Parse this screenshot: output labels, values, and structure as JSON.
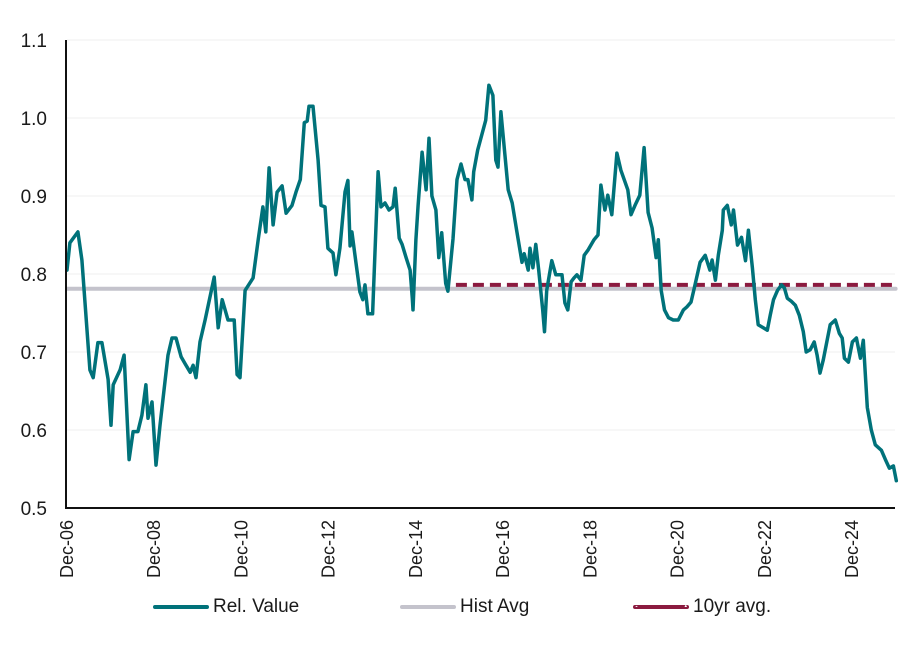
{
  "chart_data": {
    "type": "line",
    "title": "",
    "xlabel": "",
    "ylabel": "",
    "ylim": [
      0.5,
      1.1
    ],
    "yticks": [
      "0.5",
      "0.6",
      "0.7",
      "0.8",
      "0.9",
      "1.0",
      "1.1"
    ],
    "ytick_values": [
      0.5,
      0.6,
      0.7,
      0.8,
      0.9,
      1.0,
      1.1
    ],
    "xtick_labels": [
      "Dec-06",
      "Dec-08",
      "Dec-10",
      "Dec-12",
      "Dec-14",
      "Dec-16",
      "Dec-18",
      "Dec-20",
      "Dec-22",
      "Dec-24"
    ],
    "xtick_months": [
      0,
      24,
      48,
      72,
      96,
      120,
      144,
      168,
      192,
      216
    ],
    "x_unit": "months since Dec-06",
    "xlim": [
      0,
      228
    ],
    "grid": true,
    "legend_position": "bottom",
    "series": [
      {
        "name": "Rel. Value",
        "color": "#00727a",
        "style": "solid",
        "points": [
          [
            0,
            0.805
          ],
          [
            0.8,
            0.84
          ],
          [
            3.0,
            0.854
          ],
          [
            4.1,
            0.818
          ],
          [
            6.3,
            0.677
          ],
          [
            7.2,
            0.667
          ],
          [
            8.5,
            0.712
          ],
          [
            9.6,
            0.712
          ],
          [
            11.3,
            0.665
          ],
          [
            12.1,
            0.606
          ],
          [
            12.7,
            0.658
          ],
          [
            14.6,
            0.677
          ],
          [
            15.7,
            0.696
          ],
          [
            17.1,
            0.562
          ],
          [
            18.2,
            0.598
          ],
          [
            19.5,
            0.598
          ],
          [
            20.6,
            0.619
          ],
          [
            21.7,
            0.658
          ],
          [
            22.3,
            0.615
          ],
          [
            23.4,
            0.636
          ],
          [
            24.5,
            0.555
          ],
          [
            25.6,
            0.606
          ],
          [
            27.8,
            0.696
          ],
          [
            28.9,
            0.718
          ],
          [
            30.0,
            0.718
          ],
          [
            31.4,
            0.694
          ],
          [
            32.5,
            0.685
          ],
          [
            33.9,
            0.674
          ],
          [
            34.7,
            0.683
          ],
          [
            35.5,
            0.667
          ],
          [
            36.6,
            0.713
          ],
          [
            38.0,
            0.741
          ],
          [
            40.5,
            0.796
          ],
          [
            41.6,
            0.731
          ],
          [
            42.7,
            0.767
          ],
          [
            44.3,
            0.741
          ],
          [
            46.0,
            0.741
          ],
          [
            46.8,
            0.671
          ],
          [
            47.6,
            0.667
          ],
          [
            49.0,
            0.779
          ],
          [
            51.2,
            0.795
          ],
          [
            52.6,
            0.844
          ],
          [
            53.9,
            0.886
          ],
          [
            54.7,
            0.854
          ],
          [
            55.6,
            0.936
          ],
          [
            56.7,
            0.863
          ],
          [
            57.8,
            0.905
          ],
          [
            59.2,
            0.913
          ],
          [
            60.3,
            0.878
          ],
          [
            61.9,
            0.888
          ],
          [
            63.0,
            0.905
          ],
          [
            64.2,
            0.921
          ],
          [
            65.3,
            0.994
          ],
          [
            66.1,
            0.996
          ],
          [
            66.6,
            1.015
          ],
          [
            67.7,
            1.015
          ],
          [
            69.1,
            0.946
          ],
          [
            69.9,
            0.888
          ],
          [
            71.0,
            0.886
          ],
          [
            71.8,
            0.833
          ],
          [
            73.2,
            0.827
          ],
          [
            74.0,
            0.799
          ],
          [
            75.1,
            0.833
          ],
          [
            76.5,
            0.905
          ],
          [
            77.3,
            0.92
          ],
          [
            77.9,
            0.836
          ],
          [
            78.4,
            0.854
          ],
          [
            79.5,
            0.815
          ],
          [
            80.6,
            0.777
          ],
          [
            81.4,
            0.767
          ],
          [
            82.0,
            0.786
          ],
          [
            82.8,
            0.749
          ],
          [
            84.1,
            0.749
          ],
          [
            85.6,
            0.931
          ],
          [
            86.4,
            0.886
          ],
          [
            87.5,
            0.891
          ],
          [
            88.6,
            0.882
          ],
          [
            89.7,
            0.886
          ],
          [
            90.3,
            0.91
          ],
          [
            91.4,
            0.846
          ],
          [
            92.2,
            0.838
          ],
          [
            93.3,
            0.821
          ],
          [
            94.4,
            0.805
          ],
          [
            95.0,
            0.769
          ],
          [
            95.2,
            0.754
          ],
          [
            96.0,
            0.844
          ],
          [
            96.6,
            0.888
          ],
          [
            97.7,
            0.956
          ],
          [
            98.8,
            0.908
          ],
          [
            99.6,
            0.974
          ],
          [
            100.4,
            0.9
          ],
          [
            101.5,
            0.882
          ],
          [
            102.3,
            0.821
          ],
          [
            103.1,
            0.853
          ],
          [
            104.2,
            0.788
          ],
          [
            104.8,
            0.778
          ],
          [
            106.2,
            0.845
          ],
          [
            107.3,
            0.921
          ],
          [
            108.4,
            0.941
          ],
          [
            109.5,
            0.921
          ],
          [
            110.3,
            0.921
          ],
          [
            111.4,
            0.895
          ],
          [
            111.9,
            0.931
          ],
          [
            113.0,
            0.959
          ],
          [
            114.1,
            0.978
          ],
          [
            115.2,
            0.997
          ],
          [
            116.1,
            1.042
          ],
          [
            117.2,
            1.029
          ],
          [
            118.0,
            0.946
          ],
          [
            118.6,
            0.937
          ],
          [
            119.4,
            1.008
          ],
          [
            120.5,
            0.953
          ],
          [
            121.4,
            0.908
          ],
          [
            122.5,
            0.891
          ],
          [
            123.8,
            0.854
          ],
          [
            125.2,
            0.815
          ],
          [
            125.8,
            0.826
          ],
          [
            126.9,
            0.805
          ],
          [
            127.4,
            0.833
          ],
          [
            128.2,
            0.808
          ],
          [
            129.0,
            0.838
          ],
          [
            129.8,
            0.805
          ],
          [
            130.9,
            0.754
          ],
          [
            131.4,
            0.726
          ],
          [
            132.0,
            0.779
          ],
          [
            133.4,
            0.817
          ],
          [
            134.5,
            0.799
          ],
          [
            136.2,
            0.799
          ],
          [
            137.0,
            0.763
          ],
          [
            137.8,
            0.754
          ],
          [
            138.7,
            0.79
          ],
          [
            139.5,
            0.795
          ],
          [
            140.3,
            0.799
          ],
          [
            141.4,
            0.792
          ],
          [
            142.3,
            0.824
          ],
          [
            143.4,
            0.831
          ],
          [
            145.0,
            0.844
          ],
          [
            146.1,
            0.85
          ],
          [
            146.9,
            0.914
          ],
          [
            148.0,
            0.882
          ],
          [
            148.8,
            0.901
          ],
          [
            149.9,
            0.876
          ],
          [
            151.3,
            0.955
          ],
          [
            152.4,
            0.933
          ],
          [
            154.3,
            0.908
          ],
          [
            155.2,
            0.876
          ],
          [
            156.3,
            0.888
          ],
          [
            157.6,
            0.901
          ],
          [
            158.8,
            0.962
          ],
          [
            159.9,
            0.879
          ],
          [
            161.0,
            0.859
          ],
          [
            162.1,
            0.821
          ],
          [
            162.7,
            0.844
          ],
          [
            163.5,
            0.779
          ],
          [
            164.4,
            0.754
          ],
          [
            165.5,
            0.744
          ],
          [
            166.8,
            0.741
          ],
          [
            168.2,
            0.741
          ],
          [
            169.6,
            0.754
          ],
          [
            170.6,
            0.758
          ],
          [
            171.7,
            0.764
          ],
          [
            172.6,
            0.782
          ],
          [
            174.2,
            0.815
          ],
          [
            175.6,
            0.824
          ],
          [
            176.9,
            0.805
          ],
          [
            177.5,
            0.818
          ],
          [
            178.4,
            0.792
          ],
          [
            179.2,
            0.824
          ],
          [
            180.3,
            0.856
          ],
          [
            180.6,
            0.882
          ],
          [
            181.7,
            0.888
          ],
          [
            182.8,
            0.863
          ],
          [
            183.4,
            0.882
          ],
          [
            184.5,
            0.837
          ],
          [
            185.6,
            0.847
          ],
          [
            186.7,
            0.817
          ],
          [
            187.5,
            0.856
          ],
          [
            188.6,
            0.808
          ],
          [
            189.4,
            0.767
          ],
          [
            190.2,
            0.735
          ],
          [
            191.6,
            0.731
          ],
          [
            192.7,
            0.728
          ],
          [
            193.5,
            0.747
          ],
          [
            194.4,
            0.767
          ],
          [
            195.5,
            0.779
          ],
          [
            196.6,
            0.786
          ],
          [
            197.4,
            0.782
          ],
          [
            198.2,
            0.769
          ],
          [
            199.3,
            0.765
          ],
          [
            200.4,
            0.76
          ],
          [
            201.5,
            0.747
          ],
          [
            202.6,
            0.726
          ],
          [
            203.4,
            0.7
          ],
          [
            204.5,
            0.703
          ],
          [
            205.6,
            0.713
          ],
          [
            206.4,
            0.696
          ],
          [
            207.2,
            0.673
          ],
          [
            208.1,
            0.69
          ],
          [
            208.9,
            0.709
          ],
          [
            210.0,
            0.735
          ],
          [
            211.4,
            0.741
          ],
          [
            212.5,
            0.724
          ],
          [
            213.3,
            0.718
          ],
          [
            213.9,
            0.692
          ],
          [
            215.0,
            0.687
          ],
          [
            216.1,
            0.713
          ],
          [
            217.2,
            0.718
          ],
          [
            218.3,
            0.692
          ],
          [
            219.1,
            0.715
          ],
          [
            220.2,
            0.629
          ],
          [
            221.3,
            0.6
          ],
          [
            222.4,
            0.581
          ],
          [
            224.1,
            0.574
          ],
          [
            225.2,
            0.562
          ],
          [
            226.3,
            0.551
          ],
          [
            227.4,
            0.554
          ],
          [
            228.2,
            0.535
          ]
        ]
      },
      {
        "name": "Hist Avg",
        "color": "#c4c3cc",
        "style": "solid",
        "points": [
          [
            0,
            0.781
          ],
          [
            228,
            0.781
          ]
        ]
      },
      {
        "name": "10yr avg.",
        "color": "#8b1a3f",
        "style": "dashed",
        "points": [
          [
            107,
            0.786
          ],
          [
            228,
            0.786
          ]
        ]
      }
    ]
  }
}
